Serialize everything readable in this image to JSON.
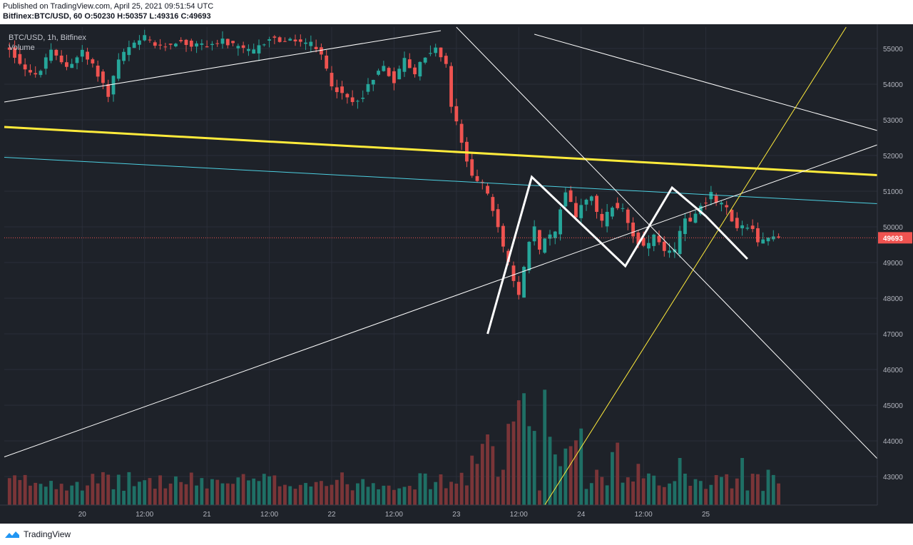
{
  "header": {
    "published": "Published on TradingView.com, April 25, 2021 09:51:54 UTC",
    "symbol": "Bitfinex:BTC/USD, 60",
    "ohlc": "O:50230 H:50357 L:49316 C:49693"
  },
  "legend": {
    "symbol_line": "BTC/USD, 1h, Bitfinex",
    "volume_label": "Volume"
  },
  "footer": {
    "brand": "TradingView"
  },
  "colors": {
    "background": "#1e2229",
    "up": "#26a69a",
    "down": "#ef5350",
    "up_volume": "#1f6f65",
    "down_volume": "#7a3538",
    "price_line": "#ef5350",
    "yellow": "#ffeb3b",
    "cyan": "#4dd0e1",
    "white": "#ffffff"
  },
  "chart_data": {
    "type": "candlestick",
    "symbol": "BTC/USD",
    "exchange": "Bitfinex",
    "interval": "60",
    "last_price": 49693,
    "last_price_label": "49693",
    "ylim": [
      42200,
      55600
    ],
    "y_ticks": [
      43000,
      44000,
      45000,
      46000,
      47000,
      48000,
      49000,
      50000,
      51000,
      52000,
      53000,
      54000,
      55000
    ],
    "x_range_hours": [
      -15,
      153
    ],
    "x_ticks": [
      {
        "label": "20",
        "hour": 0
      },
      {
        "label": "12:00",
        "hour": 12
      },
      {
        "label": "21",
        "hour": 24
      },
      {
        "label": "12:00",
        "hour": 36
      },
      {
        "label": "22",
        "hour": 48
      },
      {
        "label": "12:00",
        "hour": 60
      },
      {
        "label": "23",
        "hour": 72
      },
      {
        "label": "12:00",
        "hour": 84
      },
      {
        "label": "24",
        "hour": 96
      },
      {
        "label": "12:00",
        "hour": 108
      },
      {
        "label": "25",
        "hour": 120
      }
    ],
    "price_anchors": [
      [
        -14,
        55000
      ],
      [
        -12,
        54600
      ],
      [
        -9,
        54200
      ],
      [
        -6,
        54900
      ],
      [
        -3,
        54500
      ],
      [
        0,
        54900
      ],
      [
        3,
        54300
      ],
      [
        5,
        53700
      ],
      [
        7,
        54700
      ],
      [
        9,
        55000
      ],
      [
        12,
        55300
      ],
      [
        15,
        55000
      ],
      [
        18,
        55200
      ],
      [
        21,
        55100
      ],
      [
        24,
        55100
      ],
      [
        27,
        55200
      ],
      [
        30,
        55000
      ],
      [
        33,
        54900
      ],
      [
        36,
        55300
      ],
      [
        39,
        55200
      ],
      [
        42,
        55200
      ],
      [
        44,
        55100
      ],
      [
        46,
        54800
      ],
      [
        48,
        54000
      ],
      [
        50,
        53700
      ],
      [
        52,
        53500
      ],
      [
        54,
        53700
      ],
      [
        56,
        54200
      ],
      [
        58,
        54500
      ],
      [
        60,
        54100
      ],
      [
        62,
        54700
      ],
      [
        64,
        54300
      ],
      [
        66,
        54800
      ],
      [
        68,
        55000
      ],
      [
        70,
        54500
      ],
      [
        71,
        53400
      ],
      [
        72,
        52900
      ],
      [
        73,
        52300
      ],
      [
        75,
        51500
      ],
      [
        77,
        51200
      ],
      [
        79,
        50500
      ],
      [
        81,
        49400
      ],
      [
        82,
        49000
      ],
      [
        83,
        48400
      ],
      [
        84,
        48100
      ],
      [
        85,
        48800
      ],
      [
        86,
        49600
      ],
      [
        87,
        50000
      ],
      [
        88,
        49300
      ],
      [
        89,
        49700
      ],
      [
        90,
        49700
      ],
      [
        91,
        49800
      ],
      [
        92,
        50500
      ],
      [
        93,
        51000
      ],
      [
        94,
        50700
      ],
      [
        95,
        50300
      ],
      [
        96,
        50600
      ],
      [
        98,
        50800
      ],
      [
        99,
        50400
      ],
      [
        100,
        50100
      ],
      [
        102,
        50600
      ],
      [
        104,
        50500
      ],
      [
        106,
        49800
      ],
      [
        108,
        49400
      ],
      [
        110,
        49700
      ],
      [
        112,
        49300
      ],
      [
        114,
        49300
      ],
      [
        115,
        49800
      ],
      [
        116,
        50300
      ],
      [
        117,
        50100
      ],
      [
        119,
        50600
      ],
      [
        121,
        50900
      ],
      [
        122,
        50700
      ],
      [
        124,
        50500
      ],
      [
        125,
        50200
      ],
      [
        126,
        50000
      ],
      [
        127,
        50000
      ],
      [
        129,
        49900
      ],
      [
        130,
        49500
      ],
      [
        131,
        49600
      ],
      [
        133,
        49800
      ],
      [
        134,
        49700
      ]
    ],
    "volume_scale_max": 100,
    "volume_spikes": [
      {
        "hour": 75,
        "value": 42
      },
      {
        "hour": 76,
        "value": 35
      },
      {
        "hour": 77,
        "value": 52
      },
      {
        "hour": 78,
        "value": 60
      },
      {
        "hour": 79,
        "value": 50
      },
      {
        "hour": 80,
        "value": 24
      },
      {
        "hour": 81,
        "value": 30
      },
      {
        "hour": 82,
        "value": 69
      },
      {
        "hour": 83,
        "value": 71
      },
      {
        "hour": 84,
        "value": 89
      },
      {
        "hour": 85,
        "value": 95
      },
      {
        "hour": 86,
        "value": 67
      },
      {
        "hour": 87,
        "value": 63
      },
      {
        "hour": 89,
        "value": 98
      },
      {
        "hour": 90,
        "value": 58
      },
      {
        "hour": 91,
        "value": 43
      },
      {
        "hour": 92,
        "value": 33
      },
      {
        "hour": 93,
        "value": 48
      },
      {
        "hour": 94,
        "value": 50
      },
      {
        "hour": 95,
        "value": 55
      },
      {
        "hour": 96,
        "value": 65
      },
      {
        "hour": 99,
        "value": 30
      },
      {
        "hour": 102,
        "value": 45
      },
      {
        "hour": 103,
        "value": 53
      },
      {
        "hour": 107,
        "value": 35
      },
      {
        "hour": 110,
        "value": 25
      },
      {
        "hour": 115,
        "value": 40
      },
      {
        "hour": 118,
        "value": 22
      },
      {
        "hour": 127,
        "value": 40
      },
      {
        "hour": 132,
        "value": 30
      }
    ],
    "trendlines": [
      {
        "name": "white-upper-channel-line",
        "color": "white",
        "width": 1,
        "p1": [
          -15,
          53500
        ],
        "p2": [
          69,
          55500
        ]
      },
      {
        "name": "yellow-resistance-line",
        "color": "yellow",
        "width": 3,
        "p1": [
          -15,
          52800
        ],
        "p2": [
          153,
          51450
        ]
      },
      {
        "name": "cyan-resistance-line",
        "color": "cyan",
        "width": 1,
        "p1": [
          -15,
          51950
        ],
        "p2": [
          153,
          50650
        ]
      },
      {
        "name": "white-descending-line-steep",
        "color": "white",
        "width": 1,
        "p1": [
          72,
          55600
        ],
        "p2": [
          153,
          43500
        ]
      },
      {
        "name": "white-descending-line-shallow",
        "color": "white",
        "width": 1,
        "p1": [
          87,
          55400
        ],
        "p2": [
          153,
          52700
        ]
      },
      {
        "name": "white-ascending-support-line",
        "color": "white",
        "width": 1,
        "p1": [
          -15,
          43550
        ],
        "p2": [
          153,
          52300
        ]
      },
      {
        "name": "yellow-ascending-line",
        "color": "yellow",
        "width": 1,
        "p1": [
          89,
          42200
        ],
        "p2": [
          147,
          55600
        ]
      }
    ],
    "wave_pattern": {
      "color": "white",
      "width": 3,
      "points": [
        [
          78,
          47000
        ],
        [
          86.5,
          51400
        ],
        [
          104.5,
          48900
        ],
        [
          113.5,
          51100
        ],
        [
          120,
          50300
        ],
        [
          128,
          49100
        ]
      ]
    }
  }
}
